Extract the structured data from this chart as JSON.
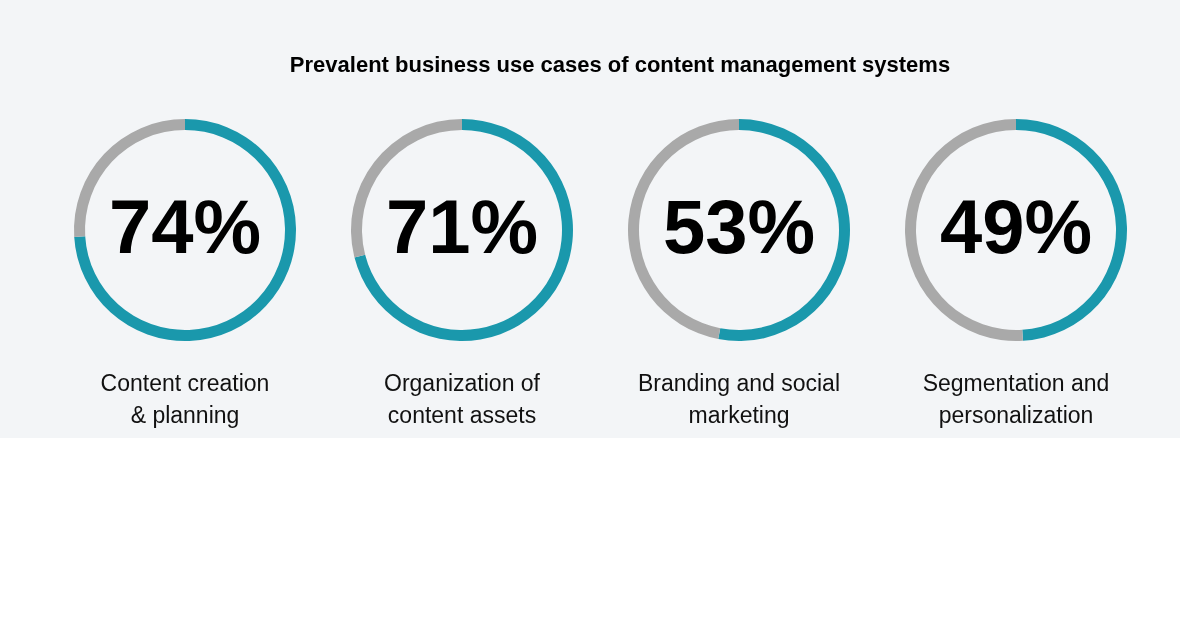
{
  "chart_data": [
    {
      "type": "other",
      "title": "Prevalent business use cases of content management systems"
    },
    {
      "type": "donut",
      "xlabel": "Content creation\n& planning",
      "categories": [
        null,
        null
      ],
      "values": [
        74,
        26
      ],
      "colors": [
        "#1a98ac",
        "#a9a9a9"
      ],
      "value_labels": [
        "74%",
        null
      ]
    },
    {
      "type": "donut",
      "xlabel": "Organization of\ncontent assets",
      "categories": [
        null,
        null
      ],
      "values": [
        71,
        29
      ],
      "colors": [
        "#1a98ac",
        "#a9a9a9"
      ],
      "value_labels": [
        "71%",
        null
      ]
    },
    {
      "type": "donut",
      "xlabel": "Branding and social\nmarketing",
      "categories": [
        null,
        null
      ],
      "values": [
        53,
        47
      ],
      "colors": [
        "#1a98ac",
        "#a9a9a9"
      ],
      "value_labels": [
        "53%",
        null
      ]
    },
    {
      "type": "donut",
      "xlabel": "Segmentation and\npersonalization",
      "categories": [
        null,
        null
      ],
      "values": [
        49,
        51
      ],
      "colors": [
        "#1a98ac",
        "#a9a9a9"
      ],
      "value_labels": [
        "49%",
        null
      ]
    }
  ]
}
